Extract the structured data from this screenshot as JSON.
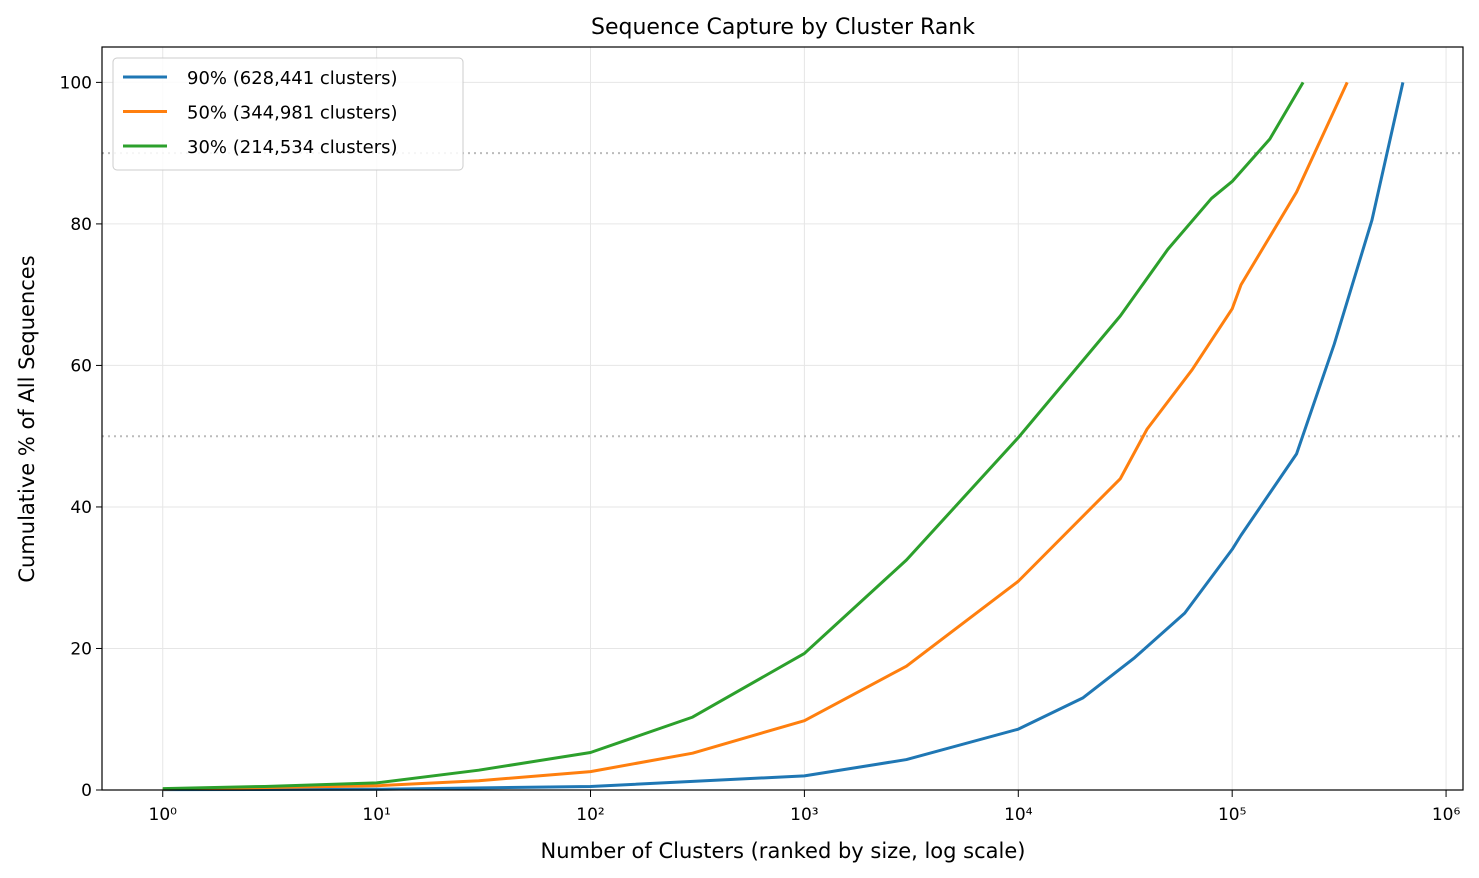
{
  "chart_data": {
    "type": "line",
    "title": "Sequence Capture by Cluster Rank",
    "xlabel": "Number of Clusters (ranked by size, log scale)",
    "ylabel": "Cumulative % of All Sequences",
    "xscale": "log",
    "xlim": [
      0.52,
      1200000
    ],
    "ylim": [
      0,
      105
    ],
    "xticks": [
      {
        "value": 1,
        "label": "10⁰"
      },
      {
        "value": 10,
        "label": "10¹"
      },
      {
        "value": 100,
        "label": "10²"
      },
      {
        "value": 1000,
        "label": "10³"
      },
      {
        "value": 10000,
        "label": "10⁴"
      },
      {
        "value": 100000,
        "label": "10⁵"
      },
      {
        "value": 1000000,
        "label": "10⁶"
      }
    ],
    "yticks": [
      0,
      20,
      40,
      60,
      80,
      100
    ],
    "grid": true,
    "hlines": [
      50,
      90
    ],
    "legend": "upper left",
    "series": [
      {
        "name": "90% (628,441 clusters)",
        "color": "#1f77b4",
        "x": [
          1,
          10,
          100,
          1000,
          3000,
          10000,
          20000,
          35000,
          60000,
          100000,
          110000,
          200000,
          300000,
          450000,
          628441
        ],
        "values": [
          0.05,
          0.1,
          0.5,
          2.0,
          4.3,
          8.6,
          13,
          18.7,
          25,
          34,
          36,
          47.5,
          63,
          80.5,
          100
        ]
      },
      {
        "name": "50% (344,981 clusters)",
        "color": "#ff7f0e",
        "x": [
          1,
          10,
          30,
          100,
          300,
          1000,
          3000,
          10000,
          30000,
          40000,
          65000,
          100000,
          110000,
          200000,
          344981
        ],
        "values": [
          0.1,
          0.6,
          1.3,
          2.6,
          5.2,
          9.8,
          17.5,
          29.5,
          44,
          51,
          59.4,
          68,
          71.4,
          84.5,
          100
        ]
      },
      {
        "name": "30% (214,534 clusters)",
        "color": "#2ca02c",
        "x": [
          1,
          3,
          10,
          30,
          100,
          300,
          1000,
          3000,
          10000,
          30000,
          50000,
          80000,
          100000,
          150000,
          214534
        ],
        "values": [
          0.2,
          0.5,
          1.0,
          2.8,
          5.3,
          10.3,
          19.3,
          32.5,
          49.8,
          67,
          76.4,
          83.6,
          86,
          92,
          100
        ]
      }
    ]
  }
}
